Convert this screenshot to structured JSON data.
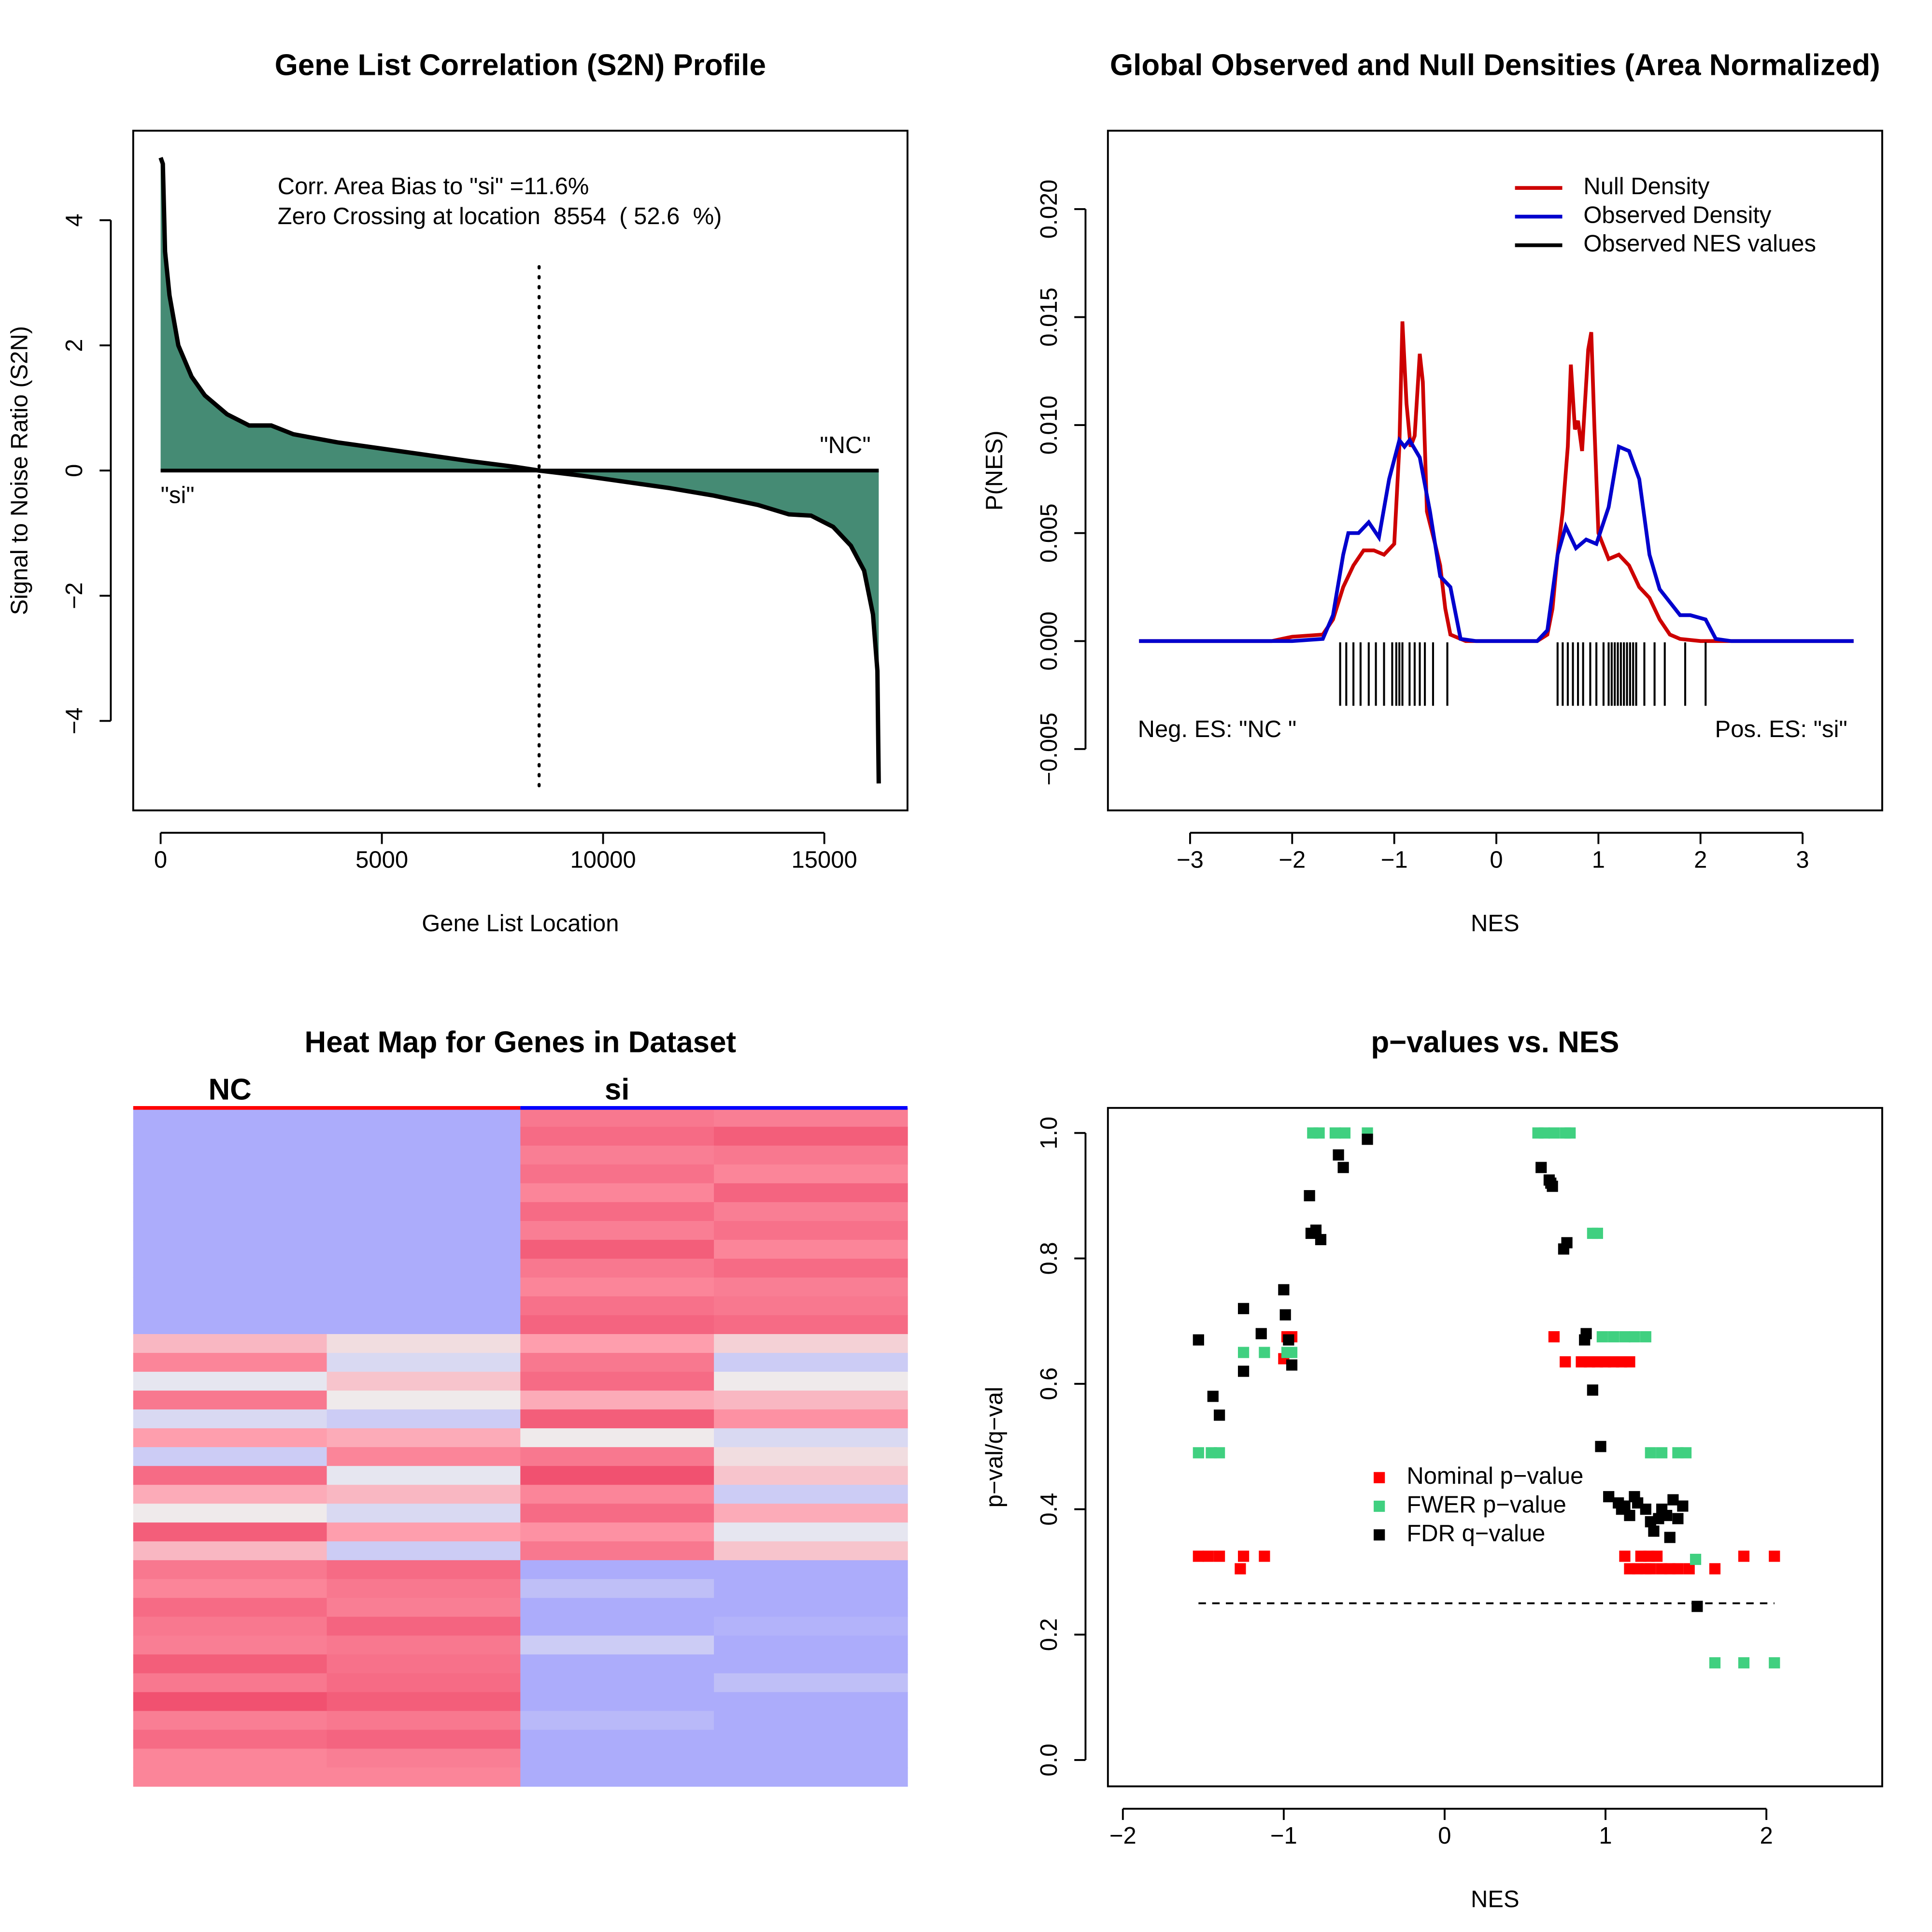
{
  "chart_data": [
    {
      "type": "area",
      "title": "Gene List Correlation (S2N) Profile",
      "xlabel": "Gene List Location",
      "ylabel": "Signal to Noise Ratio (S2N)",
      "color": "#458b74",
      "x": [
        0,
        50,
        100,
        200,
        400,
        700,
        1000,
        1500,
        2000,
        2500,
        3000,
        4000,
        5000,
        6000,
        7000,
        8000,
        8554,
        9500,
        10500,
        11500,
        12500,
        13500,
        14200,
        14700,
        15200,
        15600,
        15900,
        16100,
        16200,
        16230
      ],
      "values": [
        5,
        4.9,
        3.5,
        2.8,
        2.0,
        1.5,
        1.2,
        0.9,
        0.72,
        0.72,
        0.58,
        0.45,
        0.35,
        0.25,
        0.15,
        0.06,
        0,
        -0.08,
        -0.18,
        -0.28,
        -0.4,
        -0.55,
        -0.7,
        -0.72,
        -0.9,
        -1.2,
        -1.6,
        -2.3,
        -3.2,
        -5
      ],
      "xlim": [
        -620,
        16880
      ],
      "ylim": [
        -5.43,
        5.43
      ],
      "xticks": [
        0,
        5000,
        10000,
        15000
      ],
      "yticks": [
        {
          "value": -4,
          "label": "−4"
        },
        {
          "value": -2,
          "label": "−2"
        },
        0,
        2,
        4
      ],
      "zero_crossing": 8554,
      "annotations": [
        "Corr. Area Bias to \"si\" =11.6%",
        "Zero Crossing at location  8554  ( 52.6  %)"
      ],
      "pos_label": "\"si\"",
      "neg_label": "\"NC\""
    },
    {
      "type": "line",
      "title": "Global Observed and Null Densities (Area Normalized)",
      "xlabel": "NES",
      "ylabel": "P(NES)",
      "series": [
        {
          "name": "Null Density",
          "color": "#cd0000",
          "x": [
            -3.5,
            -2.2,
            -2,
            -1.7,
            -1.6,
            -1.5,
            -1.4,
            -1.3,
            -1.2,
            -1.1,
            -1.0,
            -0.95,
            -0.92,
            -0.88,
            -0.84,
            -0.8,
            -0.75,
            -0.72,
            -0.68,
            -0.6,
            -0.55,
            -0.5,
            -0.45,
            -0.3,
            0.4,
            0.5,
            0.55,
            0.6,
            0.65,
            0.7,
            0.73,
            0.77,
            0.8,
            0.84,
            0.9,
            0.93,
            0.96,
            1.0,
            1.1,
            1.2,
            1.3,
            1.4,
            1.5,
            1.6,
            1.7,
            1.8,
            2.0,
            3.5
          ],
          "values": [
            0,
            0,
            0.0002,
            0.0003,
            0.001,
            0.0025,
            0.0035,
            0.0042,
            0.0042,
            0.004,
            0.0045,
            0.009,
            0.0148,
            0.011,
            0.009,
            0.0095,
            0.0133,
            0.012,
            0.006,
            0.0045,
            0.0035,
            0.0015,
            0.0003,
            0,
            0,
            0.0003,
            0.0015,
            0.004,
            0.006,
            0.009,
            0.0128,
            0.0098,
            0.0102,
            0.0088,
            0.0135,
            0.0143,
            0.01,
            0.005,
            0.0038,
            0.004,
            0.0035,
            0.0025,
            0.002,
            0.001,
            0.0003,
            0.0001,
            0,
            0
          ]
        },
        {
          "name": "Observed Density",
          "color": "#0000cd",
          "x": [
            -3.5,
            -2,
            -1.7,
            -1.6,
            -1.5,
            -1.45,
            -1.35,
            -1.25,
            -1.15,
            -1.05,
            -0.95,
            -0.9,
            -0.85,
            -0.75,
            -0.65,
            -0.55,
            -0.45,
            -0.35,
            -0.2,
            0.4,
            0.5,
            0.6,
            0.68,
            0.78,
            0.88,
            0.98,
            1.1,
            1.2,
            1.3,
            1.4,
            1.5,
            1.6,
            1.7,
            1.8,
            1.9,
            2.05,
            2.15,
            2.3,
            3.5
          ],
          "values": [
            0,
            0,
            0.0001,
            0.0012,
            0.004,
            0.005,
            0.005,
            0.0055,
            0.0048,
            0.0075,
            0.0093,
            0.009,
            0.0093,
            0.0085,
            0.006,
            0.003,
            0.0025,
            0.0001,
            0,
            0,
            0.0005,
            0.004,
            0.0053,
            0.0043,
            0.0047,
            0.0045,
            0.0062,
            0.009,
            0.0088,
            0.0075,
            0.004,
            0.0024,
            0.0018,
            0.0012,
            0.0012,
            0.001,
            0.0001,
            0,
            0
          ]
        }
      ],
      "rug": {
        "name": "Observed NES values",
        "color": "#000000",
        "values": [
          -1.53,
          -1.47,
          -1.4,
          -1.33,
          -1.25,
          -1.18,
          -1.1,
          -1.02,
          -0.98,
          -0.95,
          -0.92,
          -0.85,
          -0.8,
          -0.75,
          -0.7,
          -0.62,
          -0.48,
          0.6,
          0.65,
          0.7,
          0.75,
          0.8,
          0.85,
          0.92,
          0.98,
          1.05,
          1.1,
          1.13,
          1.16,
          1.19,
          1.22,
          1.25,
          1.28,
          1.31,
          1.34,
          1.37,
          1.45,
          1.55,
          1.65,
          1.85,
          2.05
        ]
      },
      "xlim": [
        -3.805,
        3.78
      ],
      "ylim": [
        -0.00784,
        0.02363
      ],
      "xticks": [
        {
          "value": -3,
          "label": "−3"
        },
        {
          "value": -2,
          "label": "−2"
        },
        {
          "value": -1,
          "label": "−1"
        },
        0,
        1,
        2,
        3
      ],
      "yticks": [
        {
          "value": -0.005,
          "label": "−0.005"
        },
        {
          "value": 0,
          "label": "0.000"
        },
        0.005,
        {
          "value": 0.01,
          "label": "0.010"
        },
        0.015,
        {
          "value": 0.02,
          "label": "0.020"
        }
      ],
      "legend": "topright",
      "annotations": [
        "Neg. ES: \"NC \"",
        "Pos. ES: \"si\""
      ]
    },
    {
      "type": "heatmap",
      "title": "Heat Map for Genes in Dataset",
      "column_groups": [
        "NC",
        "si"
      ],
      "group_colors": [
        "#ff0000",
        "#0000ff"
      ],
      "zlim": [
        -1,
        1
      ],
      "palette": [
        "#9999ff",
        "#eeeeee",
        "#ff9aaa",
        "#ee4466"
      ],
      "values": [
        [
          -0.85,
          -0.85,
          0.6,
          0.55
        ],
        [
          -0.85,
          -0.85,
          0.7,
          0.8
        ],
        [
          -0.85,
          -0.85,
          0.55,
          0.6
        ],
        [
          -0.85,
          -0.85,
          0.65,
          0.5
        ],
        [
          -0.85,
          -0.85,
          0.5,
          0.75
        ],
        [
          -0.85,
          -0.85,
          0.7,
          0.55
        ],
        [
          -0.85,
          -0.85,
          0.55,
          0.65
        ],
        [
          -0.85,
          -0.85,
          0.8,
          0.5
        ],
        [
          -0.85,
          -0.85,
          0.6,
          0.7
        ],
        [
          -0.85,
          -0.85,
          0.5,
          0.55
        ],
        [
          -0.85,
          -0.85,
          0.65,
          0.6
        ],
        [
          -0.85,
          -0.85,
          0.75,
          0.7
        ],
        [
          0.1,
          -0.2,
          0.3,
          -0.1
        ],
        [
          0.5,
          -0.5,
          0.6,
          -0.6
        ],
        [
          -0.4,
          0.0,
          0.7,
          -0.3
        ],
        [
          0.6,
          -0.3,
          0.2,
          0.1
        ],
        [
          -0.5,
          -0.6,
          0.8,
          0.4
        ],
        [
          0.3,
          0.2,
          -0.3,
          -0.5
        ],
        [
          -0.6,
          0.5,
          0.6,
          -0.2
        ],
        [
          0.7,
          -0.4,
          0.9,
          0.0
        ],
        [
          0.2,
          0.1,
          0.5,
          -0.6
        ],
        [
          -0.3,
          -0.5,
          0.7,
          0.2
        ],
        [
          0.8,
          0.3,
          0.4,
          -0.4
        ],
        [
          0.1,
          -0.6,
          0.6,
          0.0
        ],
        [
          0.6,
          0.7,
          -0.85,
          -0.85
        ],
        [
          0.5,
          0.6,
          -0.7,
          -0.85
        ],
        [
          0.7,
          0.55,
          -0.85,
          -0.85
        ],
        [
          0.6,
          0.75,
          -0.85,
          -0.8
        ],
        [
          0.55,
          0.6,
          -0.6,
          -0.85
        ],
        [
          0.8,
          0.65,
          -0.85,
          -0.85
        ],
        [
          0.6,
          0.7,
          -0.85,
          -0.7
        ],
        [
          0.9,
          0.8,
          -0.85,
          -0.85
        ],
        [
          0.55,
          0.6,
          -0.75,
          -0.85
        ],
        [
          0.7,
          0.75,
          -0.85,
          -0.85
        ],
        [
          0.5,
          0.55,
          -0.85,
          -0.85
        ],
        [
          0.5,
          0.5,
          -0.85,
          -0.85
        ]
      ]
    },
    {
      "type": "scatter",
      "title": "p−values vs. NES",
      "xlabel": "NES",
      "ylabel": "p−val/q−val",
      "series": [
        {
          "name": "Nominal p−value",
          "color": "#ff0000",
          "x": [
            -1.53,
            -1.47,
            -1.4,
            -1.25,
            -1.27,
            -1.12,
            -1.0,
            -0.98,
            -0.95,
            0.68,
            0.75,
            0.85,
            0.9,
            0.95,
            1.0,
            1.05,
            1.1,
            1.15,
            1.12,
            1.15,
            1.22,
            1.27,
            1.32,
            1.28,
            1.35,
            1.4,
            1.45,
            1.52,
            1.68,
            1.86,
            2.05,
            1.2,
            1.25
          ],
          "values": [
            0.325,
            0.325,
            0.325,
            0.325,
            0.305,
            0.325,
            0.64,
            0.675,
            0.675,
            0.675,
            0.635,
            0.635,
            0.635,
            0.635,
            0.635,
            0.635,
            0.635,
            0.635,
            0.325,
            0.305,
            0.325,
            0.325,
            0.325,
            0.305,
            0.305,
            0.305,
            0.305,
            0.305,
            0.305,
            0.325,
            0.325,
            0.305,
            0.305
          ]
        },
        {
          "name": "FWER p−value",
          "color": "#40d080",
          "x": [
            -1.53,
            -1.45,
            -1.4,
            -1.25,
            -1.12,
            -0.98,
            -0.95,
            -0.82,
            -0.78,
            -0.68,
            -0.62,
            -0.48,
            0.58,
            0.62,
            0.68,
            0.75,
            0.78,
            0.92,
            0.95,
            0.98,
            1.05,
            1.12,
            1.18,
            1.25,
            1.28,
            1.35,
            1.45,
            1.5,
            1.56,
            1.68,
            1.86,
            2.05
          ],
          "values": [
            0.49,
            0.49,
            0.49,
            0.65,
            0.65,
            0.65,
            0.65,
            1.0,
            1.0,
            1.0,
            1.0,
            1.0,
            1.0,
            1.0,
            1.0,
            1.0,
            1.0,
            0.84,
            0.84,
            0.675,
            0.675,
            0.675,
            0.675,
            0.675,
            0.49,
            0.49,
            0.49,
            0.49,
            0.32,
            0.155,
            0.155,
            0.155
          ]
        },
        {
          "name": "FDR q−value",
          "color": "#000000",
          "x": [
            -1.53,
            -1.44,
            -1.4,
            -1.25,
            -1.25,
            -1.14,
            -1.0,
            -0.99,
            -0.97,
            -0.95,
            -0.84,
            -0.83,
            -0.8,
            -0.77,
            -0.66,
            -0.63,
            -0.48,
            0.6,
            0.65,
            0.66,
            0.67,
            0.74,
            0.76,
            0.87,
            0.88,
            0.92,
            0.97,
            1.02,
            1.08,
            1.1,
            1.12,
            1.15,
            1.18,
            1.2,
            1.25,
            1.28,
            1.3,
            1.33,
            1.35,
            1.38,
            1.4,
            1.42,
            1.45,
            1.48,
            1.57
          ],
          "values": [
            0.67,
            0.58,
            0.55,
            0.72,
            0.62,
            0.68,
            0.75,
            0.71,
            0.67,
            0.63,
            0.9,
            0.84,
            0.845,
            0.83,
            0.965,
            0.945,
            0.99,
            0.945,
            0.925,
            0.92,
            0.915,
            0.815,
            0.825,
            0.67,
            0.68,
            0.59,
            0.5,
            0.42,
            0.41,
            0.4,
            0.405,
            0.39,
            0.42,
            0.41,
            0.4,
            0.38,
            0.365,
            0.385,
            0.4,
            0.39,
            0.355,
            0.415,
            0.385,
            0.405,
            0.245
          ]
        }
      ],
      "hline": 0.25,
      "hline_x": [
        -1.53,
        2.05
      ],
      "xlim": [
        -2.093,
        2.72
      ],
      "ylim": [
        -0.042,
        1.04
      ],
      "xticks": [
        {
          "value": -2,
          "label": "−2"
        },
        {
          "value": -1,
          "label": "−1"
        },
        0,
        1,
        2
      ],
      "yticks": [
        {
          "value": 0,
          "label": "0.0"
        },
        0.2,
        0.4,
        0.6,
        0.8,
        {
          "value": 1,
          "label": "1.0"
        }
      ],
      "legend": "center"
    }
  ]
}
